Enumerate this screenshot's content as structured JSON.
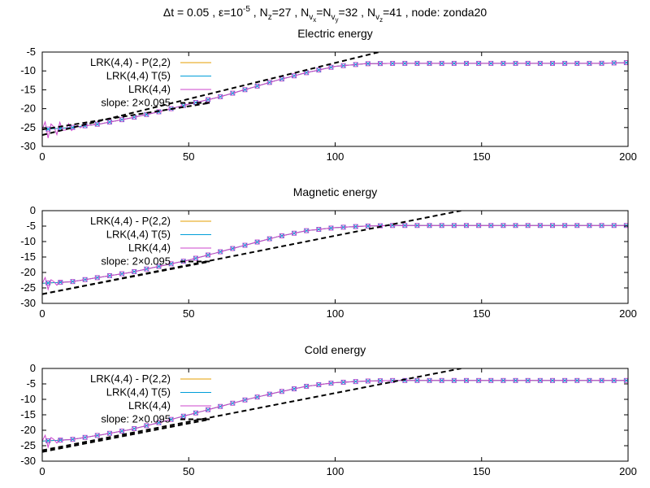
{
  "figure": {
    "suptitle": {
      "dt": "Δt = 0.05",
      "eps_base": "ε=10",
      "eps_exp": "-5",
      "nz_base": "N",
      "nz_sub": "z",
      "nz_val": "=27",
      "nv_main": "N",
      "nv_sub1": "v",
      "nv_subsub1": "x",
      "nv_eq": "=N",
      "nv_sub2": "v",
      "nv_subsub2": "y",
      "nv_val": "=32",
      "nvz_main": "N",
      "nvz_sub": "v",
      "nvz_subsub": "z",
      "nvz_val": "=41",
      "node": "node: zonda20",
      "sep": " , "
    }
  },
  "colors": {
    "series_p22": "#e69f00",
    "series_t5": "#009ed9",
    "series_lrk": "#cc44cc",
    "slope": "#000000",
    "marker": "#cc44cc"
  },
  "chart_data": [
    {
      "type": "line",
      "title": "Electric energy",
      "xlim": [
        0,
        200
      ],
      "ylim": [
        -30,
        -5
      ],
      "xticks": [
        "0",
        "50",
        "100",
        "150",
        "200"
      ],
      "yticks": [
        "-5",
        "-10",
        "-15",
        "-20",
        "-25",
        "-30"
      ],
      "xticks_values": [
        0,
        50,
        100,
        150,
        200
      ],
      "yticks_values": [
        -5,
        -10,
        -15,
        -20,
        -25,
        -30
      ],
      "legend_position": "top-left",
      "series": [
        {
          "name": "LRK(4,4) - P(2,2)",
          "color_key": "series_p22",
          "x": [
            0,
            10,
            20,
            30,
            40,
            50,
            60,
            70,
            80,
            90,
            100,
            110,
            120,
            130,
            140,
            150,
            160,
            170,
            180,
            190,
            200
          ],
          "y": [
            -25.5,
            -25,
            -24,
            -22.5,
            -20.8,
            -18.8,
            -17,
            -14.8,
            -12.5,
            -10.5,
            -8.8,
            -8.1,
            -8,
            -8,
            -8,
            -8,
            -8,
            -8,
            -8,
            -8,
            -7.8
          ]
        },
        {
          "name": "LRK(4,4) T(5)",
          "color_key": "series_t5",
          "x": [
            0,
            10,
            20,
            30,
            40,
            50,
            60,
            70,
            80,
            90,
            100,
            110,
            120,
            130,
            140,
            150,
            160,
            170,
            180,
            190,
            200
          ],
          "y": [
            -25.5,
            -25,
            -24,
            -22.5,
            -20.8,
            -18.8,
            -17,
            -14.8,
            -12.5,
            -10.5,
            -8.8,
            -8.1,
            -8,
            -8,
            -8,
            -8,
            -8,
            -8,
            -8,
            -8,
            -7.8
          ]
        },
        {
          "name": "LRK(4,4)",
          "color_key": "series_lrk",
          "x": [
            0,
            10,
            20,
            30,
            40,
            50,
            60,
            70,
            80,
            90,
            100,
            110,
            120,
            130,
            140,
            150,
            160,
            170,
            180,
            190,
            200
          ],
          "y": [
            -25.5,
            -25,
            -24,
            -22.5,
            -20.8,
            -18.8,
            -17,
            -14.8,
            -12.5,
            -10.5,
            -8.8,
            -8.1,
            -8,
            -8,
            -8,
            -8,
            -8,
            -8,
            -8,
            -8,
            -7.8
          ],
          "noise_until_x": 15
        },
        {
          "name": "slope: 2×0.095",
          "color_key": "slope",
          "dashed": true,
          "segments": [
            {
              "x": [
                0,
                115
              ],
              "y": [
                -27,
                -5
              ]
            },
            {
              "x": [
                0,
                57
              ],
              "y": [
                -25.5,
                -18.5
              ]
            }
          ]
        }
      ]
    },
    {
      "type": "line",
      "title": "Magnetic energy",
      "xlim": [
        0,
        200
      ],
      "ylim": [
        -30,
        0
      ],
      "xticks": [
        "0",
        "50",
        "100",
        "150",
        "200"
      ],
      "yticks": [
        "0",
        "-5",
        "-10",
        "-15",
        "-20",
        "-25",
        "-30"
      ],
      "xticks_values": [
        0,
        50,
        100,
        150,
        200
      ],
      "yticks_values": [
        0,
        -5,
        -10,
        -15,
        -20,
        -25,
        -30
      ],
      "legend_position": "top-left",
      "series": [
        {
          "name": "LRK(4,4) - P(2,2)",
          "color_key": "series_p22",
          "x": [
            0,
            10,
            20,
            30,
            40,
            50,
            60,
            70,
            80,
            90,
            100,
            110,
            120,
            130,
            140,
            150,
            160,
            170,
            180,
            190,
            200
          ],
          "y": [
            -23.5,
            -23,
            -21.5,
            -20,
            -18,
            -16,
            -13.5,
            -11,
            -8.5,
            -6.5,
            -5.5,
            -5,
            -4.8,
            -4.8,
            -4.8,
            -4.8,
            -4.8,
            -4.8,
            -4.8,
            -4.8,
            -4.8
          ]
        },
        {
          "name": "LRK(4,4) T(5)",
          "color_key": "series_t5",
          "x": [
            0,
            10,
            20,
            30,
            40,
            50,
            60,
            70,
            80,
            90,
            100,
            110,
            120,
            130,
            140,
            150,
            160,
            170,
            180,
            190,
            200
          ],
          "y": [
            -23.5,
            -23,
            -21.5,
            -20,
            -18,
            -16,
            -13.5,
            -11,
            -8.5,
            -6.5,
            -5.5,
            -5,
            -4.8,
            -4.8,
            -4.8,
            -4.8,
            -4.8,
            -4.8,
            -4.8,
            -4.8,
            -4.8
          ]
        },
        {
          "name": "LRK(4,4)",
          "color_key": "series_lrk",
          "x": [
            0,
            10,
            20,
            30,
            40,
            50,
            60,
            70,
            80,
            90,
            100,
            110,
            120,
            130,
            140,
            150,
            160,
            170,
            180,
            190,
            200
          ],
          "y": [
            -23.5,
            -23,
            -21.5,
            -20,
            -18,
            -16,
            -13.5,
            -11,
            -8.5,
            -6.5,
            -5.5,
            -5,
            -4.8,
            -4.8,
            -4.8,
            -4.8,
            -4.8,
            -4.8,
            -4.8,
            -4.8,
            -4.8
          ],
          "noise_until_x": 8
        },
        {
          "name": "slope: 2×0.095",
          "color_key": "slope",
          "dashed": true,
          "segments": [
            {
              "x": [
                0,
                143
              ],
              "y": [
                -27,
                0
              ]
            },
            {
              "x": [
                0,
                57
              ],
              "y": [
                -27,
                -16.5
              ]
            }
          ]
        }
      ]
    },
    {
      "type": "line",
      "title": "Cold energy",
      "xlim": [
        0,
        200
      ],
      "ylim": [
        -30,
        0
      ],
      "xticks": [
        "0",
        "50",
        "100",
        "150",
        "200"
      ],
      "yticks": [
        "0",
        "-5",
        "-10",
        "-15",
        "-20",
        "-25",
        "-30"
      ],
      "xticks_values": [
        0,
        50,
        100,
        150,
        200
      ],
      "yticks_values": [
        0,
        -5,
        -10,
        -15,
        -20,
        -25,
        -30
      ],
      "legend_position": "top-left",
      "series": [
        {
          "name": "LRK(4,4) - P(2,2)",
          "color_key": "series_p22",
          "x": [
            0,
            10,
            20,
            30,
            40,
            50,
            60,
            70,
            80,
            90,
            100,
            110,
            120,
            130,
            140,
            150,
            160,
            170,
            180,
            190,
            200
          ],
          "y": [
            -23.5,
            -23,
            -21.5,
            -19.8,
            -17.5,
            -15,
            -12.5,
            -10,
            -7.8,
            -5.8,
            -4.6,
            -4.1,
            -3.9,
            -3.9,
            -3.9,
            -3.9,
            -3.9,
            -3.9,
            -3.9,
            -3.9,
            -3.9
          ]
        },
        {
          "name": "LRK(4,4) T(5)",
          "color_key": "series_t5",
          "x": [
            0,
            10,
            20,
            30,
            40,
            50,
            60,
            70,
            80,
            90,
            100,
            110,
            120,
            130,
            140,
            150,
            160,
            170,
            180,
            190,
            200
          ],
          "y": [
            -23.5,
            -23,
            -21.5,
            -19.8,
            -17.5,
            -15,
            -12.5,
            -10,
            -7.8,
            -5.8,
            -4.6,
            -4.1,
            -3.9,
            -3.9,
            -3.9,
            -3.9,
            -3.9,
            -3.9,
            -3.9,
            -3.9,
            -3.9
          ]
        },
        {
          "name": "LRK(4,4)",
          "color_key": "series_lrk",
          "x": [
            0,
            10,
            20,
            30,
            40,
            50,
            60,
            70,
            80,
            90,
            100,
            110,
            120,
            130,
            140,
            150,
            160,
            170,
            180,
            190,
            200
          ],
          "y": [
            -23.5,
            -23,
            -21.5,
            -19.8,
            -17.5,
            -15,
            -12.5,
            -10,
            -7.8,
            -5.8,
            -4.6,
            -4.1,
            -3.9,
            -3.9,
            -3.9,
            -3.9,
            -3.9,
            -3.9,
            -3.9,
            -3.9,
            -3.9
          ],
          "noise_until_x": 8
        },
        {
          "name": "slope: 2×0.095",
          "color_key": "slope",
          "dashed": true,
          "segments": [
            {
              "x": [
                0,
                143
              ],
              "y": [
                -26.5,
                0
              ]
            },
            {
              "x": [
                0,
                57
              ],
              "y": [
                -27,
                -16.5
              ]
            }
          ]
        }
      ]
    }
  ]
}
